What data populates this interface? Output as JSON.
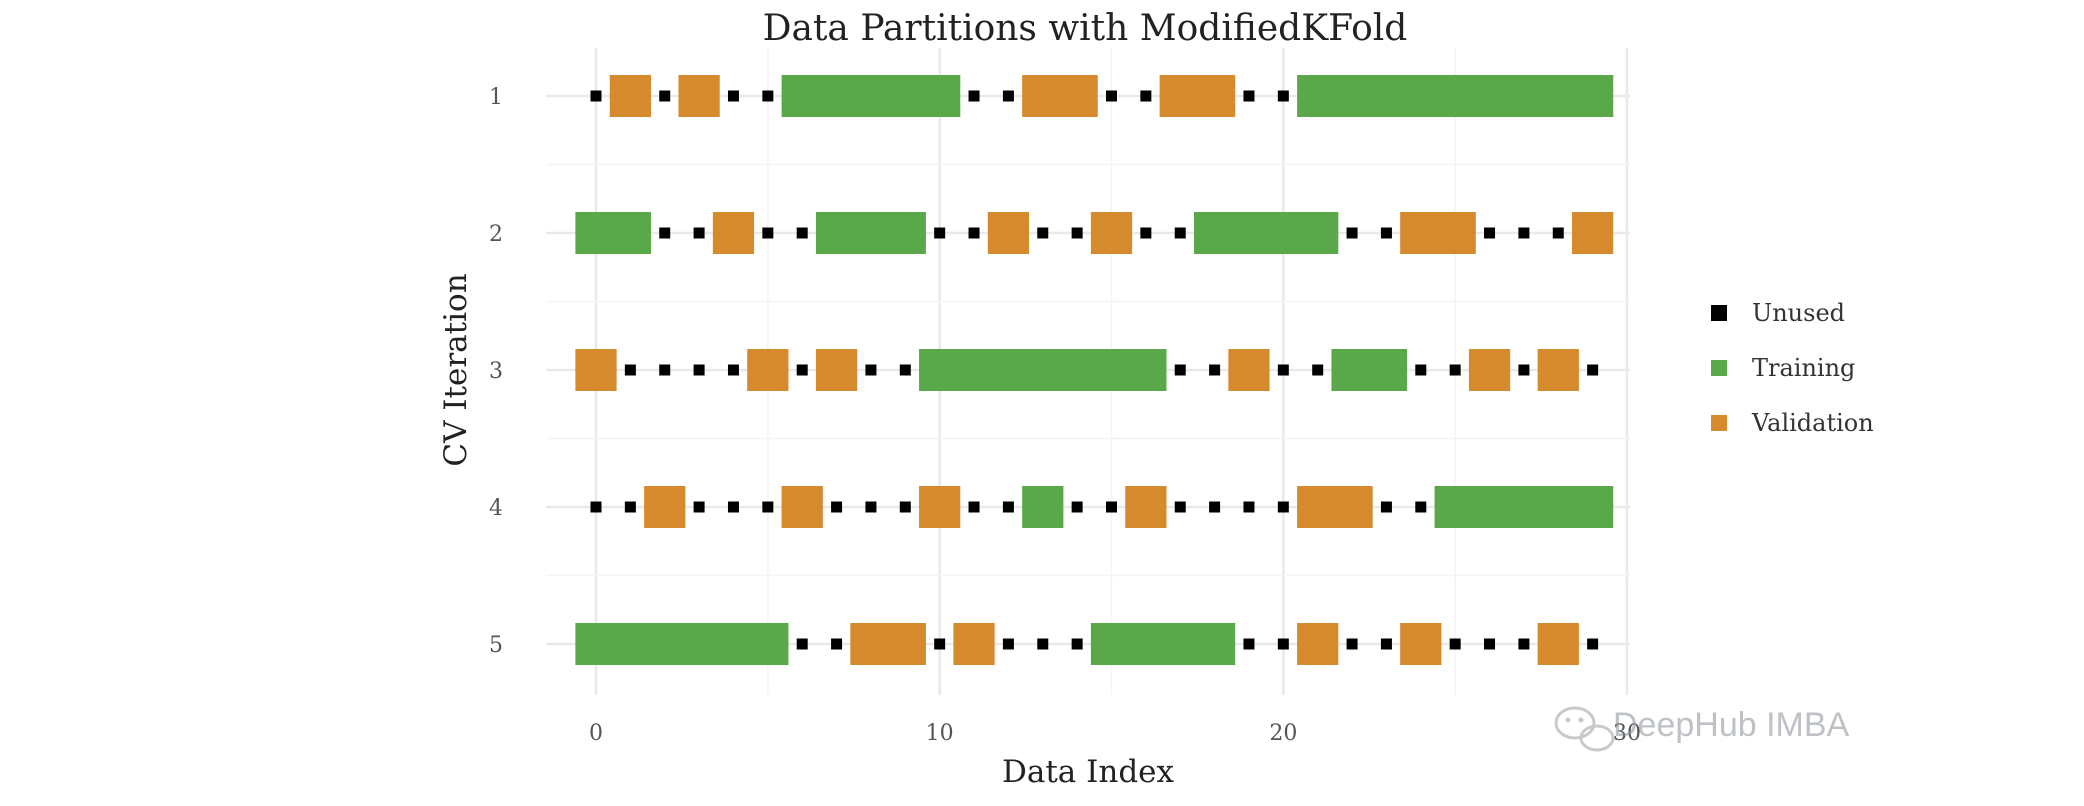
{
  "chart_data": {
    "type": "segmented-timeline",
    "title": "Data Partitions with ModifiedKFold",
    "xlabel": "Data Index",
    "ylabel": "CV Iteration",
    "xlim": [
      -0.6,
      30.8
    ],
    "x_ticks": [
      0,
      10,
      20,
      30
    ],
    "x_tick_labels": [
      "0",
      "10",
      "20",
      "30"
    ],
    "y_categories": [
      "1",
      "2",
      "3",
      "4",
      "5"
    ],
    "grid": true,
    "legend_placement": "right",
    "legend": [
      {
        "key": "unused",
        "label": "Unused"
      },
      {
        "key": "training",
        "label": "Training"
      },
      {
        "key": "validation",
        "label": "Validation"
      }
    ],
    "colors": {
      "unused": "#000000",
      "training": "#5aa84a",
      "validation": "#d58a2e"
    },
    "data_index_range": [
      0,
      29
    ],
    "series": [
      {
        "iteration": "1",
        "labels": [
          "U",
          "V",
          "U",
          "V",
          "U",
          "U",
          "T",
          "T",
          "T",
          "T",
          "T",
          "U",
          "U",
          "V",
          "V",
          "U",
          "U",
          "V",
          "V",
          "U",
          "U",
          "T",
          "T",
          "T",
          "T",
          "T",
          "T",
          "T",
          "T",
          "T"
        ]
      },
      {
        "iteration": "2",
        "labels": [
          "T",
          "T",
          "U",
          "U",
          "V",
          "U",
          "U",
          "T",
          "T",
          "T",
          "U",
          "U",
          "V",
          "U",
          "U",
          "V",
          "U",
          "U",
          "T",
          "T",
          "T",
          "T",
          "U",
          "U",
          "V",
          "V",
          "U",
          "U",
          "U",
          "V"
        ]
      },
      {
        "iteration": "3",
        "labels": [
          "V",
          "U",
          "U",
          "U",
          "U",
          "V",
          "U",
          "V",
          "U",
          "U",
          "T",
          "T",
          "T",
          "T",
          "T",
          "T",
          "T",
          "U",
          "U",
          "V",
          "U",
          "U",
          "T",
          "T",
          "U",
          "U",
          "V",
          "U",
          "V",
          "U"
        ]
      },
      {
        "iteration": "4",
        "labels": [
          "U",
          "U",
          "V",
          "U",
          "U",
          "U",
          "V",
          "U",
          "U",
          "U",
          "V",
          "U",
          "U",
          "T",
          "U",
          "U",
          "V",
          "U",
          "U",
          "U",
          "U",
          "V",
          "V",
          "U",
          "U",
          "T",
          "T",
          "T",
          "T",
          "T"
        ]
      },
      {
        "iteration": "5",
        "labels": [
          "T",
          "T",
          "T",
          "T",
          "T",
          "T",
          "U",
          "U",
          "V",
          "V",
          "U",
          "V",
          "U",
          "U",
          "U",
          "T",
          "T",
          "T",
          "T",
          "U",
          "U",
          "V",
          "U",
          "U",
          "V",
          "U",
          "U",
          "U",
          "V",
          "U"
        ]
      }
    ]
  },
  "watermark": {
    "text": "DeepHub IMBA",
    "icon": "wechat-icon"
  }
}
